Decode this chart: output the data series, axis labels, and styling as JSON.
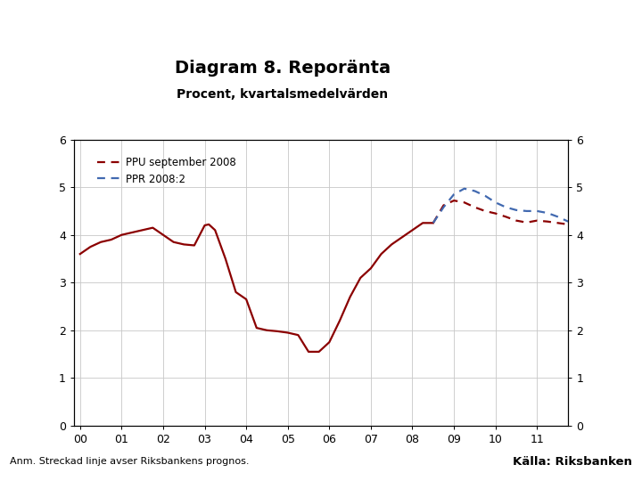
{
  "title": "Diagram 8. Reporänta",
  "subtitle": "Procent, kvartalsmedelvärden",
  "footnote": "Anm. Streckad linje avser Riksbankens prognos.",
  "source": "Källa: Riksbanken",
  "ylim": [
    0,
    6
  ],
  "yticks": [
    0,
    1,
    2,
    3,
    4,
    5,
    6
  ],
  "xtick_labels": [
    "00",
    "01",
    "02",
    "03",
    "04",
    "05",
    "06",
    "07",
    "08",
    "09",
    "10",
    "11"
  ],
  "xtick_positions": [
    2000,
    2001,
    2002,
    2003,
    2004,
    2005,
    2006,
    2007,
    2008,
    2009,
    2010,
    2011
  ],
  "xmin": 1999.85,
  "xmax": 2011.75,
  "ppu_solid_x": [
    2000.0,
    2000.25,
    2000.5,
    2000.75,
    2001.0,
    2001.25,
    2001.5,
    2001.75,
    2002.0,
    2002.25,
    2002.5,
    2002.75,
    2003.0,
    2003.1,
    2003.25,
    2003.5,
    2003.75,
    2004.0,
    2004.25,
    2004.5,
    2004.75,
    2005.0,
    2005.25,
    2005.5,
    2005.75,
    2006.0,
    2006.25,
    2006.5,
    2006.75,
    2007.0,
    2007.25,
    2007.5,
    2007.75,
    2008.0,
    2008.25,
    2008.5
  ],
  "ppu_solid_y": [
    3.6,
    3.75,
    3.85,
    3.9,
    4.0,
    4.05,
    4.1,
    4.15,
    4.0,
    3.85,
    3.8,
    3.78,
    4.2,
    4.22,
    4.1,
    3.5,
    2.8,
    2.65,
    2.05,
    2.0,
    1.98,
    1.95,
    1.9,
    1.55,
    1.55,
    1.75,
    2.2,
    2.7,
    3.1,
    3.3,
    3.6,
    3.8,
    3.95,
    4.1,
    4.25,
    4.25
  ],
  "ppu_dash_x": [
    2008.5,
    2008.75,
    2009.0,
    2009.25,
    2009.5,
    2009.75,
    2010.0,
    2010.25,
    2010.5,
    2010.75,
    2011.0,
    2011.25,
    2011.5,
    2011.75
  ],
  "ppu_dash_y": [
    4.25,
    4.62,
    4.72,
    4.68,
    4.58,
    4.5,
    4.45,
    4.38,
    4.3,
    4.26,
    4.3,
    4.28,
    4.25,
    4.22
  ],
  "ppr_dash_x": [
    2008.5,
    2008.75,
    2009.0,
    2009.25,
    2009.5,
    2009.75,
    2010.0,
    2010.25,
    2010.5,
    2010.75,
    2011.0,
    2011.25,
    2011.5,
    2011.75
  ],
  "ppr_dash_y": [
    4.25,
    4.58,
    4.85,
    4.97,
    4.92,
    4.82,
    4.68,
    4.58,
    4.52,
    4.5,
    4.5,
    4.46,
    4.38,
    4.28
  ],
  "ppu_color": "#8B0000",
  "ppr_color": "#4169B0",
  "legend_ppu": "PPU september 2008",
  "legend_ppr": "PPR 2008:2",
  "title_fontsize": 14,
  "subtitle_fontsize": 10,
  "axis_fontsize": 9,
  "footer_bar_color": "#1F3B7A",
  "background_color": "#ffffff"
}
